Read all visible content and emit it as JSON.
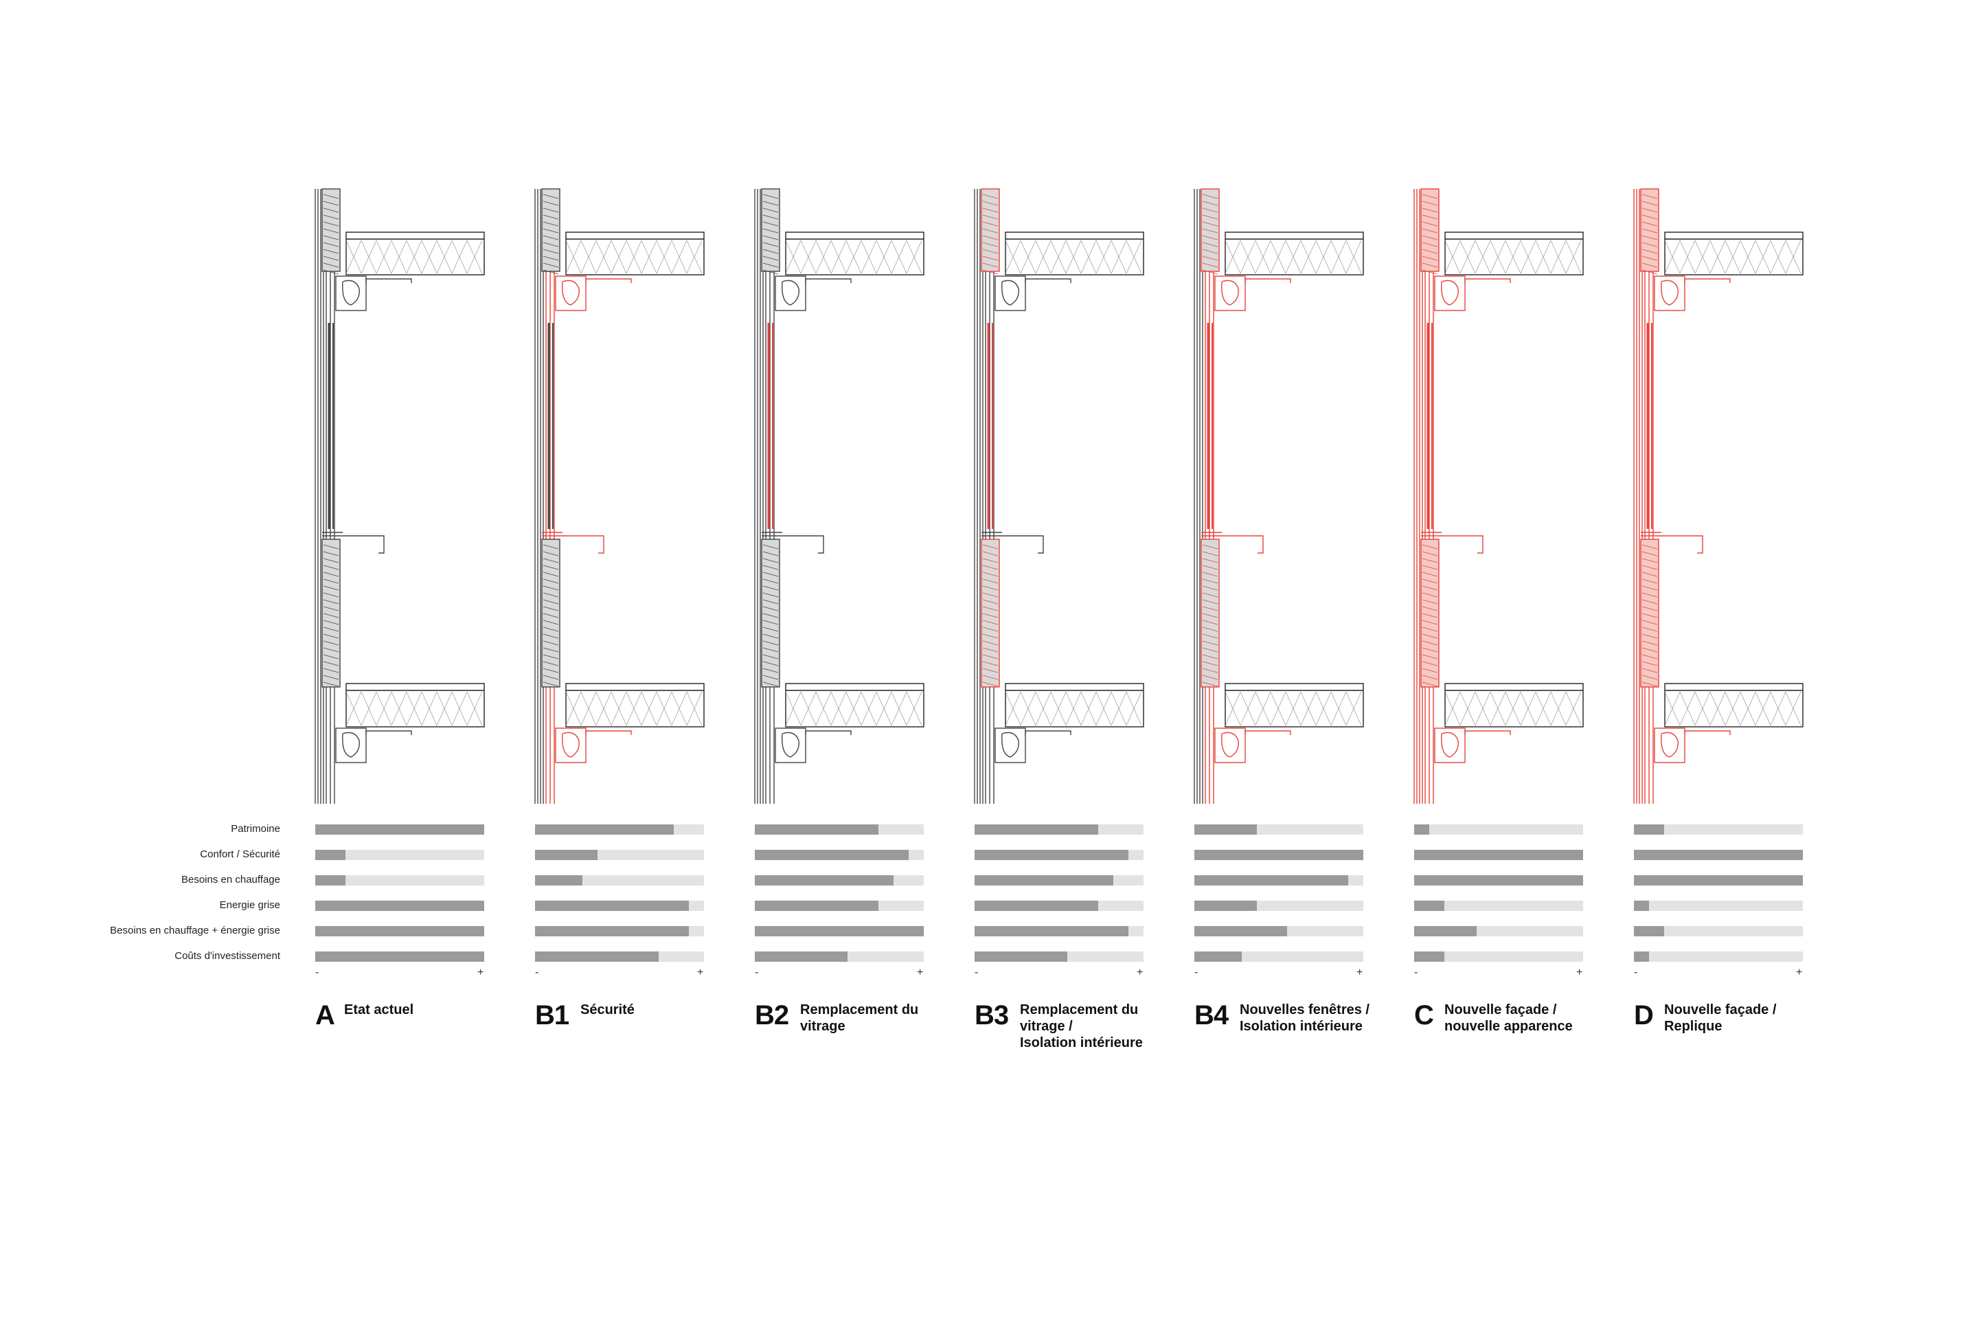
{
  "criteria": [
    "Patrimoine",
    "Confort / Sécurité",
    "Besoins en chauffage",
    "Energie grise",
    "Besoins en chauffage + énergie grise",
    "Coûts d'investissement"
  ],
  "scale": {
    "min": "-",
    "max": "+"
  },
  "colors": {
    "existing_line": "#444444",
    "new_line": "#e8433a",
    "bar_fill": "#9a9a9a",
    "bar_track": "#e3e3e3"
  },
  "options": [
    {
      "code": "A",
      "title": "Etat actuel",
      "scores": [
        1.0,
        0.18,
        0.18,
        1.0,
        1.0,
        1.0
      ],
      "color_level": "none"
    },
    {
      "code": "B1",
      "title": "Sécurité",
      "scores": [
        0.82,
        0.37,
        0.28,
        0.91,
        0.91,
        0.73
      ],
      "color_level": "partial"
    },
    {
      "code": "B2",
      "title": "Remplacement du\nvitrage",
      "scores": [
        0.73,
        0.91,
        0.82,
        0.73,
        1.0,
        0.55
      ],
      "color_level": "glass"
    },
    {
      "code": "B3",
      "title": "Remplacement du\nvitrage /\nIsolation intérieure",
      "scores": [
        0.73,
        0.91,
        0.82,
        0.73,
        0.91,
        0.55
      ],
      "color_level": "glass_insul"
    },
    {
      "code": "B4",
      "title": "Nouvelles fenêtres /\nIsolation intérieure",
      "scores": [
        0.37,
        1.0,
        0.91,
        0.37,
        0.55,
        0.28
      ],
      "color_level": "windows"
    },
    {
      "code": "C",
      "title": "Nouvelle façade /\nnouvelle apparence",
      "scores": [
        0.09,
        1.0,
        1.0,
        0.18,
        0.37,
        0.18
      ],
      "color_level": "full"
    },
    {
      "code": "D",
      "title": "Nouvelle façade /\nReplique",
      "scores": [
        0.18,
        1.0,
        1.0,
        0.09,
        0.18,
        0.09
      ],
      "color_level": "replica"
    }
  ]
}
